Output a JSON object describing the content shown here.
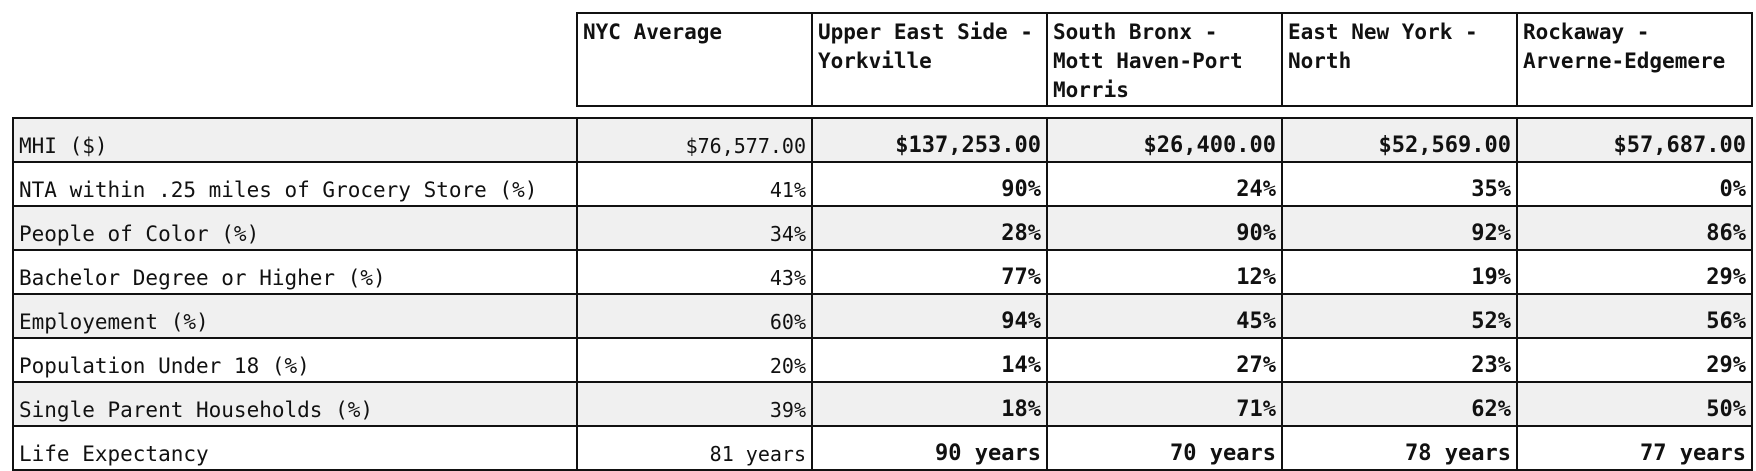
{
  "columns": [
    "NYC Average",
    "Upper East Side - Yorkville",
    "South Bronx - Mott Haven-Port Morris",
    "East New York - North",
    "Rockaway - Arverne-Edgemere"
  ],
  "rows": [
    {
      "label": "MHI ($)",
      "values": [
        "$76,577.00",
        "$137,253.00",
        "$26,400.00",
        "$52,569.00",
        "$57,687.00"
      ]
    },
    {
      "label": "NTA within .25 miles of Grocery Store (%)",
      "values": [
        "41%",
        "90%",
        "24%",
        "35%",
        "0%"
      ]
    },
    {
      "label": "People of Color (%)",
      "values": [
        "34%",
        "28%",
        "90%",
        "92%",
        "86%"
      ]
    },
    {
      "label": "Bachelor Degree or Higher (%)",
      "values": [
        "43%",
        "77%",
        "12%",
        "19%",
        "29%"
      ]
    },
    {
      "label": "Employement (%)",
      "values": [
        "60%",
        "94%",
        "45%",
        "52%",
        "56%"
      ]
    },
    {
      "label": "Population Under 18 (%)",
      "values": [
        "20%",
        "14%",
        "27%",
        "23%",
        "29%"
      ]
    },
    {
      "label": "Single Parent Households (%)",
      "values": [
        "39%",
        "18%",
        "71%",
        "62%",
        "50%"
      ]
    },
    {
      "label": "Life Expectancy",
      "values": [
        "81 years",
        "90 years",
        "70 years",
        "78 years",
        "77 years"
      ]
    }
  ],
  "colors": {
    "border": "#111111",
    "row_shade": "#f0f0f0",
    "text": "#111111"
  }
}
